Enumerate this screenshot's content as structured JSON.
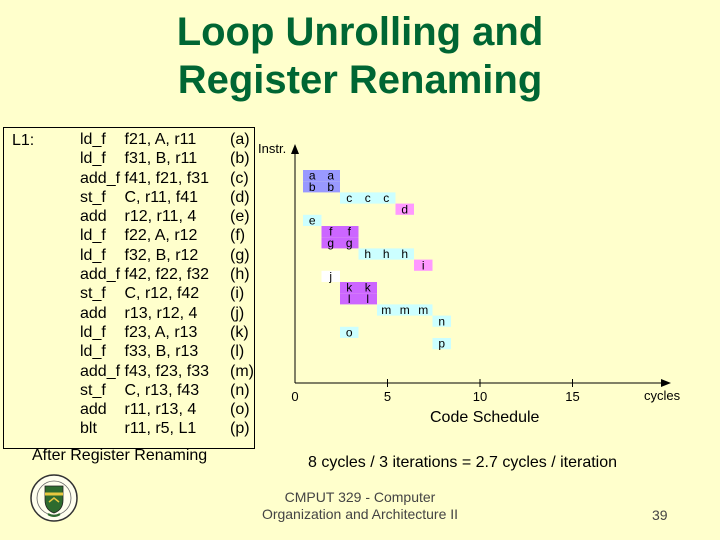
{
  "title": {
    "line1": "Loop Unrolling and",
    "line2": "Register Renaming"
  },
  "code": {
    "label": "L1:",
    "caption": "After Register Renaming",
    "instructions": [
      {
        "op": "ld_f",
        "args": "f21, A, r11",
        "tag": "(a)"
      },
      {
        "op": "ld_f",
        "args": "f31, B, r11",
        "tag": "(b)"
      },
      {
        "op": "add_f",
        "args": "f41, f21, f31",
        "tag": "(c)"
      },
      {
        "op": "st_f",
        "args": "C, r11, f41",
        "tag": "(d)"
      },
      {
        "op": "add",
        "args": "r12, r11, 4",
        "tag": "(e)"
      },
      {
        "op": "ld_f",
        "args": "f22, A, r12",
        "tag": "(f)"
      },
      {
        "op": "ld_f",
        "args": "f32, B, r12",
        "tag": "(g)"
      },
      {
        "op": "add_f",
        "args": "f42, f22, f32",
        "tag": "(h)"
      },
      {
        "op": "st_f",
        "args": "C, r12, f42",
        "tag": "(i)"
      },
      {
        "op": "add",
        "args": "r13, r12, 4",
        "tag": "(j)"
      },
      {
        "op": "ld_f",
        "args": "f23, A, r13",
        "tag": "(k)"
      },
      {
        "op": "ld_f",
        "args": "f33, B, r13",
        "tag": "(l)"
      },
      {
        "op": "add_f",
        "args": "f43, f23, f33",
        "tag": "(m)"
      },
      {
        "op": "st_f",
        "args": "C, r13, f43",
        "tag": "(n)"
      },
      {
        "op": "add",
        "args": "r11, r13, 4",
        "tag": "(o)"
      },
      {
        "op": "blt",
        "args": "r11, r5, L1",
        "tag": "(p)"
      }
    ]
  },
  "chart_data": {
    "type": "table",
    "y_axis_label": "Instr.",
    "x_axis_label": "cycles",
    "x_ticks": [
      "0",
      "5",
      "10",
      "15"
    ],
    "caption": "Code Schedule",
    "colors": {
      "purple": "#9999FF",
      "magenta": "#CC66FF",
      "light_blue": "#CCFFFF",
      "pink": "#FF99FF",
      "white": "#FFFFFF"
    },
    "blocks": [
      {
        "row": 0,
        "cells": [
          {
            "c": 0,
            "t": "a"
          },
          {
            "c": 1,
            "t": "a"
          }
        ],
        "color": "purple"
      },
      {
        "row": 1,
        "cells": [
          {
            "c": 0,
            "t": "b"
          },
          {
            "c": 1,
            "t": "b"
          }
        ],
        "color": "purple"
      },
      {
        "row": 2,
        "cells": [
          {
            "c": 2,
            "t": "c"
          },
          {
            "c": 3,
            "t": "c"
          },
          {
            "c": 4,
            "t": "c"
          }
        ],
        "color": "light_blue"
      },
      {
        "row": 3,
        "cells": [
          {
            "c": 5,
            "t": "d"
          }
        ],
        "color": "pink"
      },
      {
        "row": 4,
        "cells": [
          {
            "c": 0,
            "t": "e"
          }
        ],
        "color": "light_blue"
      },
      {
        "row": 5,
        "cells": [
          {
            "c": 1,
            "t": "f"
          },
          {
            "c": 2,
            "t": "f"
          }
        ],
        "color": "magenta"
      },
      {
        "row": 6,
        "cells": [
          {
            "c": 1,
            "t": "g"
          },
          {
            "c": 2,
            "t": "g"
          }
        ],
        "color": "magenta"
      },
      {
        "row": 7,
        "cells": [
          {
            "c": 3,
            "t": "h"
          },
          {
            "c": 4,
            "t": "h"
          },
          {
            "c": 5,
            "t": "h"
          }
        ],
        "color": "light_blue"
      },
      {
        "row": 8,
        "cells": [
          {
            "c": 6,
            "t": "i"
          }
        ],
        "color": "pink"
      },
      {
        "row": 9,
        "cells": [
          {
            "c": 1,
            "t": "j"
          }
        ],
        "color": "white"
      },
      {
        "row": 10,
        "cells": [
          {
            "c": 2,
            "t": "k"
          },
          {
            "c": 3,
            "t": "k"
          }
        ],
        "color": "magenta"
      },
      {
        "row": 11,
        "cells": [
          {
            "c": 2,
            "t": "l"
          },
          {
            "c": 3,
            "t": "l"
          }
        ],
        "color": "magenta"
      },
      {
        "row": 12,
        "cells": [
          {
            "c": 4,
            "t": "m"
          },
          {
            "c": 5,
            "t": "m"
          },
          {
            "c": 6,
            "t": "m"
          }
        ],
        "color": "light_blue"
      },
      {
        "row": 13,
        "cells": [
          {
            "c": 7,
            "t": "n"
          }
        ],
        "color": "light_blue"
      },
      {
        "row": 14,
        "cells": [
          {
            "c": 2,
            "t": "o"
          }
        ],
        "color": "light_blue"
      },
      {
        "row": 15,
        "cells": [
          {
            "c": 7,
            "t": "p"
          }
        ],
        "color": "light_blue"
      }
    ]
  },
  "summary": "8 cycles / 3 iterations = 2.7 cycles / iteration",
  "footer": {
    "line1": "CMPUT 329 - Computer",
    "line2": "Organization and Architecture II"
  },
  "page_number": "39",
  "logo_icon": "university-crest-icon"
}
